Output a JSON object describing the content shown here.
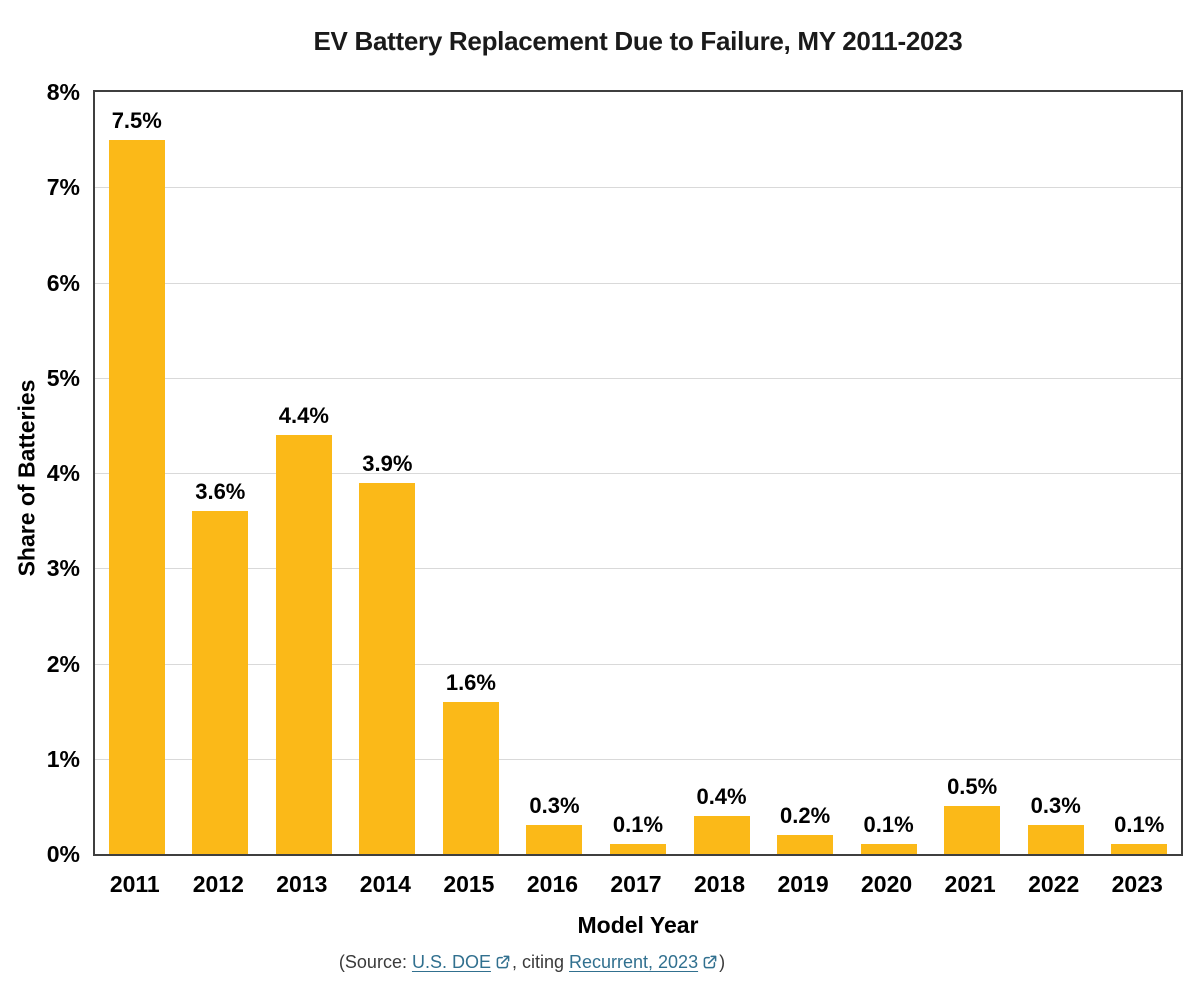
{
  "chart_data": {
    "type": "bar",
    "title": "EV Battery Replacement Due to Failure, MY 2011-2023",
    "categories": [
      "2011",
      "2012",
      "2013",
      "2014",
      "2015",
      "2016",
      "2017",
      "2018",
      "2019",
      "2020",
      "2021",
      "2022",
      "2023"
    ],
    "values": [
      7.5,
      3.6,
      4.4,
      3.9,
      1.6,
      0.3,
      0.1,
      0.4,
      0.2,
      0.1,
      0.5,
      0.3,
      0.1
    ],
    "value_labels": [
      "7.5%",
      "3.6%",
      "4.4%",
      "3.9%",
      "1.6%",
      "0.3%",
      "0.1%",
      "0.4%",
      "0.2%",
      "0.1%",
      "0.5%",
      "0.3%",
      "0.1%"
    ],
    "xlabel": "Model Year",
    "ylabel": "Share of Batteries",
    "ylim": [
      0,
      8
    ],
    "yticks": [
      0,
      1,
      2,
      3,
      4,
      5,
      6,
      7,
      8
    ],
    "ytick_labels": [
      "0%",
      "1%",
      "2%",
      "3%",
      "4%",
      "5%",
      "6%",
      "7%",
      "8%"
    ],
    "grid": "horizontal",
    "legend": "none",
    "bar_color": "#FBB918"
  },
  "colors": {
    "link": "#31708F",
    "gridline": "#D9D9D9",
    "plot_border": "#3F3F3F",
    "text": "#000000",
    "source_text": "#3A3A3A"
  },
  "source": {
    "prefix": "(Source: ",
    "link1_label": "U.S. DOE",
    "middle": ", citing ",
    "link2_label": "Recurrent, 2023",
    "suffix": ")"
  }
}
